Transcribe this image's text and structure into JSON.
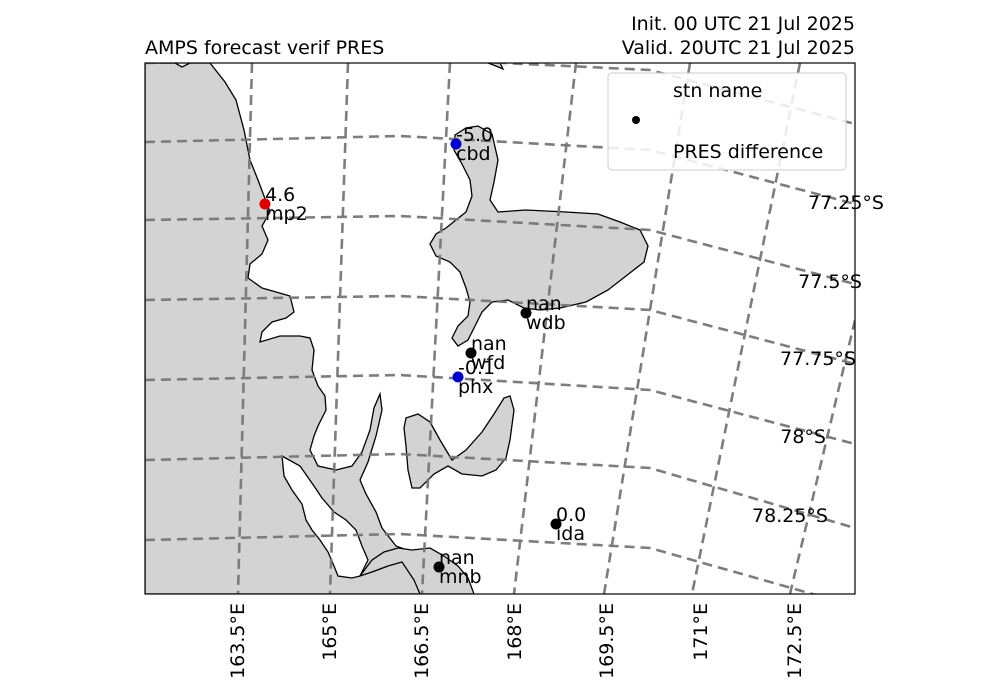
{
  "title_left": "AMPS forecast verif PRES",
  "title_right_line1": "Init. 00 UTC 21 Jul 2025",
  "title_right_line2": "Valid. 20UTC 21 Jul 2025",
  "legend": {
    "marker_label": "stn name",
    "value_label": "PRES difference"
  },
  "lat_labels": [
    "77.25°S",
    "77.5°S",
    "77.75°S",
    "78°S",
    "78.25°S"
  ],
  "lon_labels": [
    "163.5°E",
    "165°E",
    "166.5°E",
    "168°E",
    "169.5°E",
    "171°E",
    "172.5°E"
  ],
  "colors": {
    "land": "#d3d3d3",
    "positive": "#dd0000",
    "negative": "#0000cc",
    "neutral": "#000000",
    "gridline": "#777777"
  },
  "stations": [
    {
      "name": "cbd",
      "value": "-5.0",
      "sign": "negative"
    },
    {
      "name": "mp2",
      "value": "4.6",
      "sign": "positive"
    },
    {
      "name": "wdb",
      "value": "nan",
      "sign": "neutral"
    },
    {
      "name": "wfd",
      "value": "nan",
      "sign": "neutral"
    },
    {
      "name": "phx",
      "value": "-0.1",
      "sign": "negative"
    },
    {
      "name": "ida",
      "value": "0.0",
      "sign": "neutral"
    },
    {
      "name": "mnb",
      "value": "nan",
      "sign": "neutral"
    }
  ]
}
